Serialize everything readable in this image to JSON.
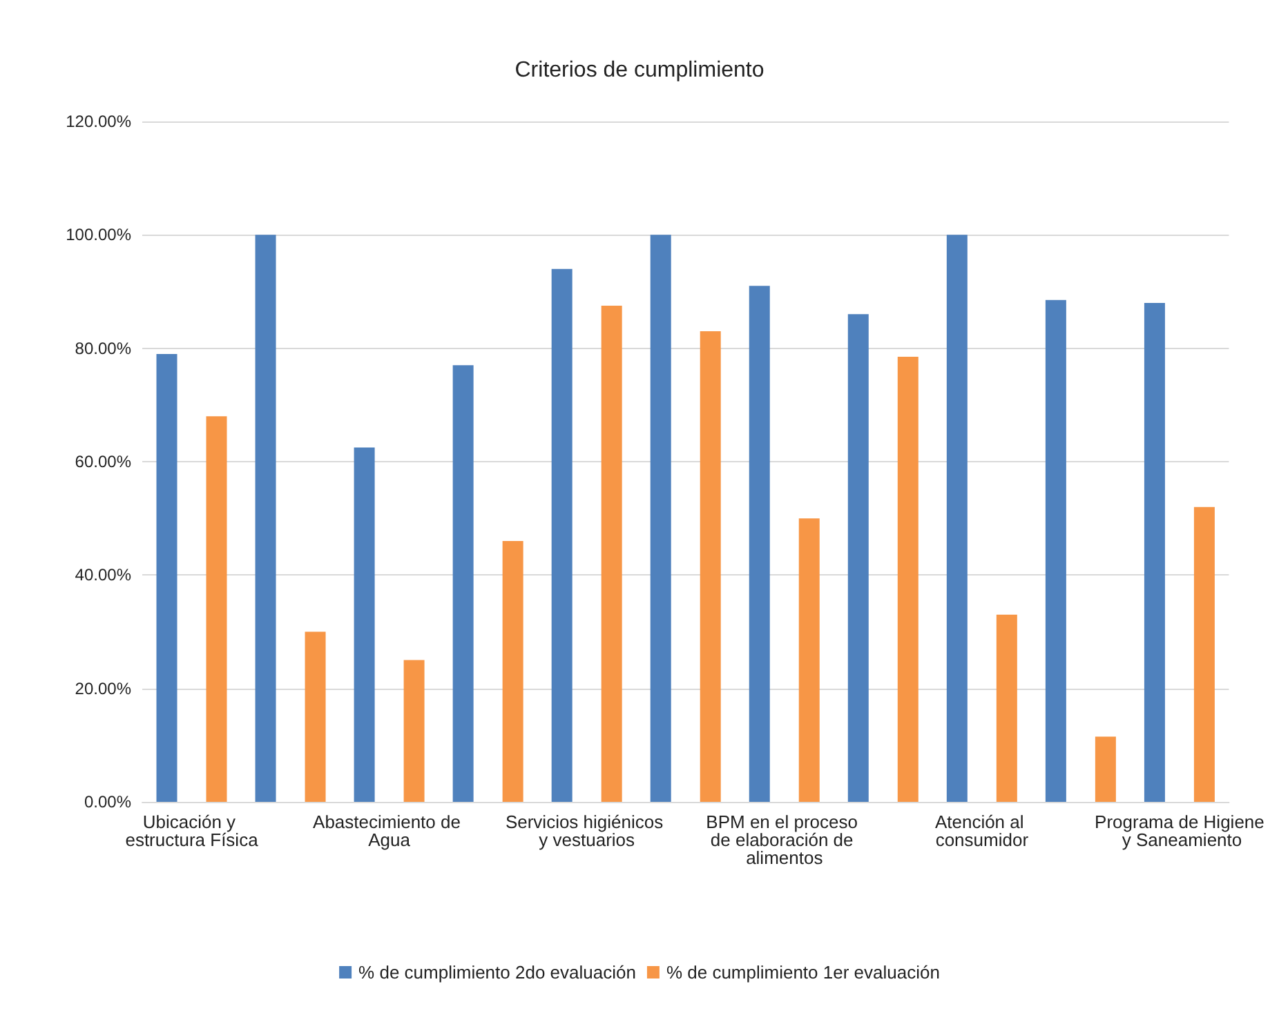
{
  "chart_data": {
    "type": "bar",
    "title": "Criterios de cumplimiento",
    "categories": [
      "Ubicación y estructura Física",
      null,
      "Abastecimiento de Agua",
      null,
      "Servicios higiénicos y vestuarios",
      null,
      "BPM en el proceso de elaboración de alimentos",
      null,
      "Atención al consumidor",
      null,
      "Programa de Higiene y Saneamiento"
    ],
    "series": [
      {
        "name": "% de cumplimiento 2do evaluación",
        "color": "#4f81bd",
        "values": [
          79,
          100,
          62.5,
          77,
          94,
          100,
          91,
          86,
          100,
          88.5,
          88
        ]
      },
      {
        "name": "% de cumplimiento 1er evaluación",
        "color": "#f79646",
        "values": [
          68,
          30,
          25,
          46,
          87.5,
          83,
          50,
          78.5,
          33,
          11.5,
          52
        ]
      }
    ],
    "ylim": [
      0,
      120
    ],
    "yticks": [
      {
        "value": 0,
        "label": "0.00%"
      },
      {
        "value": 20,
        "label": "20.00%"
      },
      {
        "value": 40,
        "label": "40.00%"
      },
      {
        "value": 60,
        "label": "60.00%"
      },
      {
        "value": 80,
        "label": "80.00%"
      },
      {
        "value": 100,
        "label": "100.00%"
      },
      {
        "value": 120,
        "label": "120.00%"
      }
    ],
    "grid": "y",
    "legend": "bottom"
  }
}
